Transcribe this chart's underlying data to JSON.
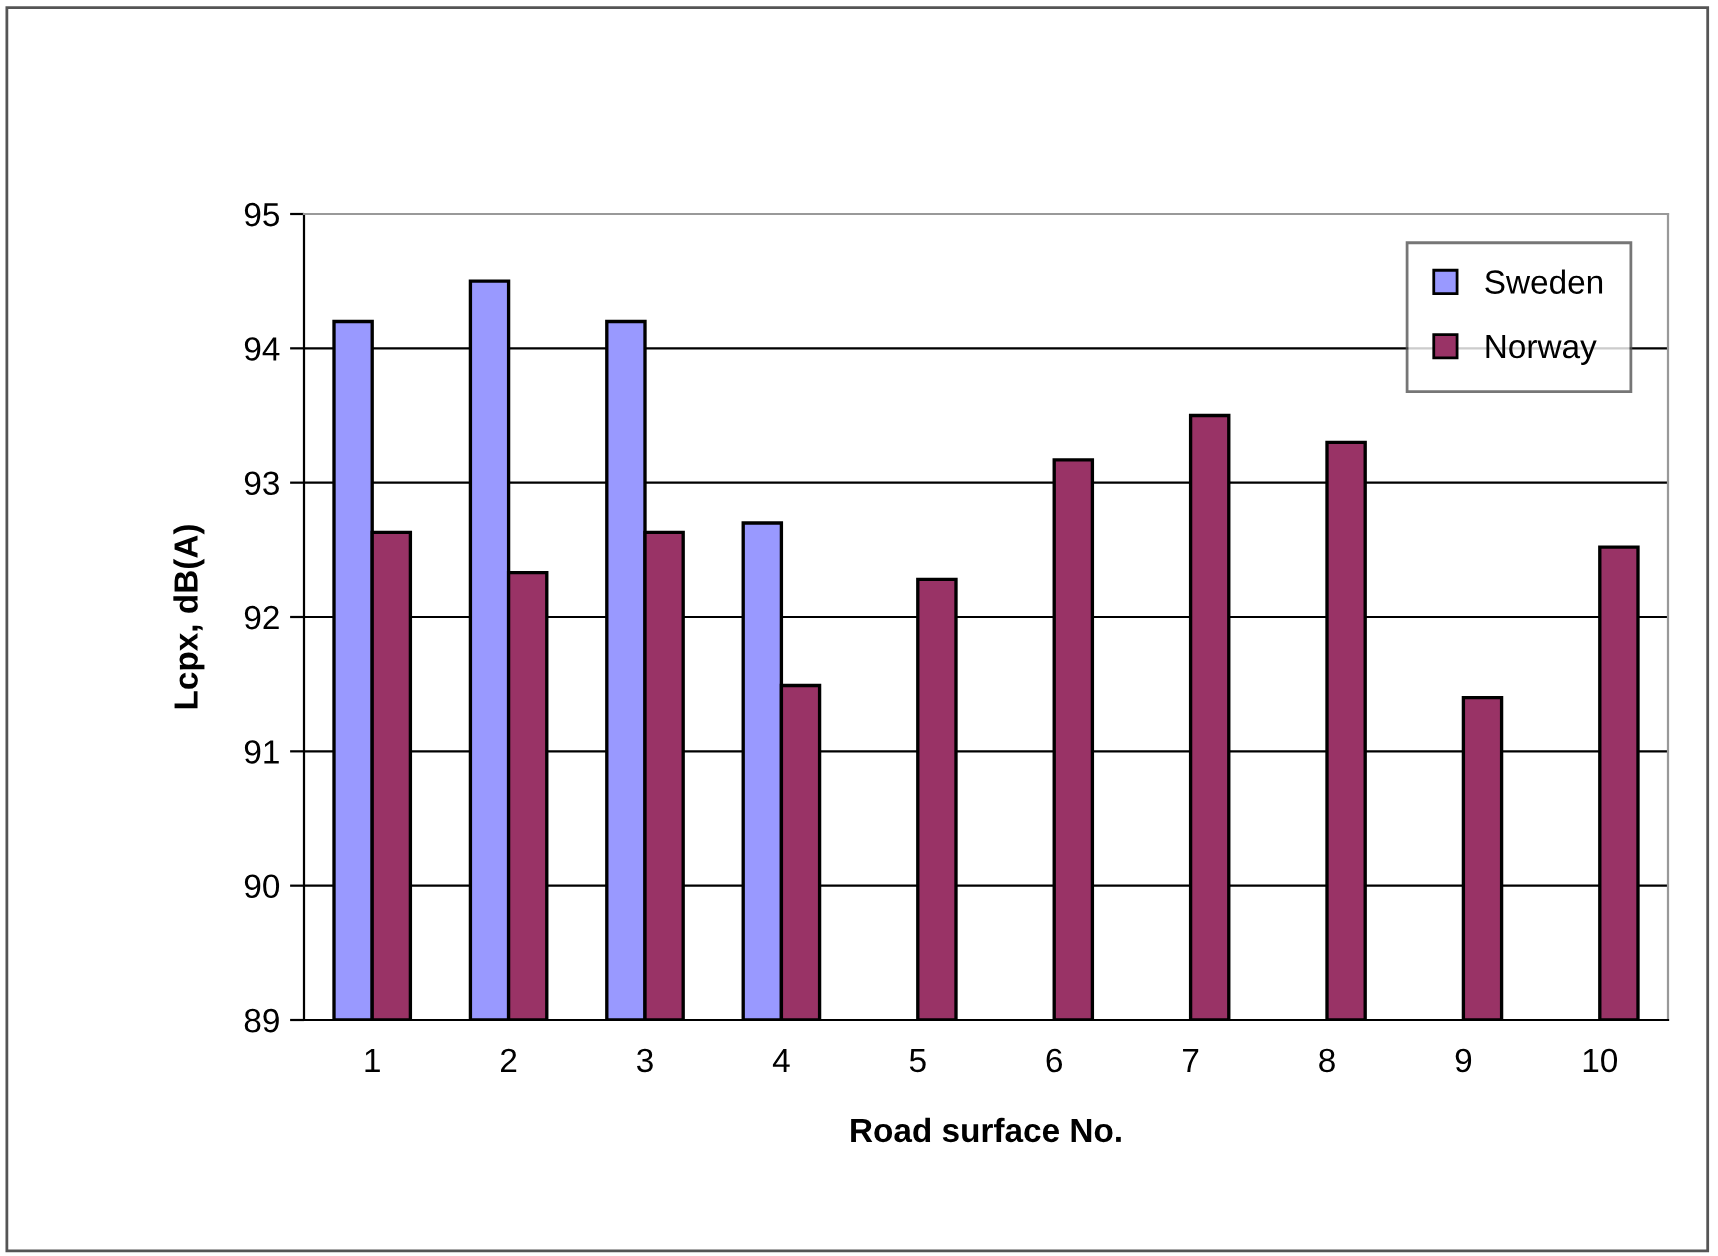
{
  "chart_data": {
    "type": "bar",
    "xlabel": "Road surface No.",
    "ylabel": "Lcpx, dB(A)",
    "categories": [
      "1",
      "2",
      "3",
      "4",
      "5",
      "6",
      "7",
      "8",
      "9",
      "10"
    ],
    "series": [
      {
        "name": "Sweden",
        "color": "#9999ff",
        "values": [
          94.2,
          94.5,
          94.2,
          92.7,
          null,
          null,
          null,
          null,
          null,
          null
        ]
      },
      {
        "name": "Norway",
        "color": "#993366",
        "values": [
          92.63,
          92.33,
          92.63,
          91.49,
          92.28,
          93.17,
          93.5,
          93.3,
          91.4,
          92.52
        ]
      }
    ],
    "ylim": [
      89,
      95
    ],
    "yticks": [
      89,
      90,
      91,
      92,
      93,
      94,
      95
    ],
    "grid": "y",
    "legend": "top right"
  }
}
